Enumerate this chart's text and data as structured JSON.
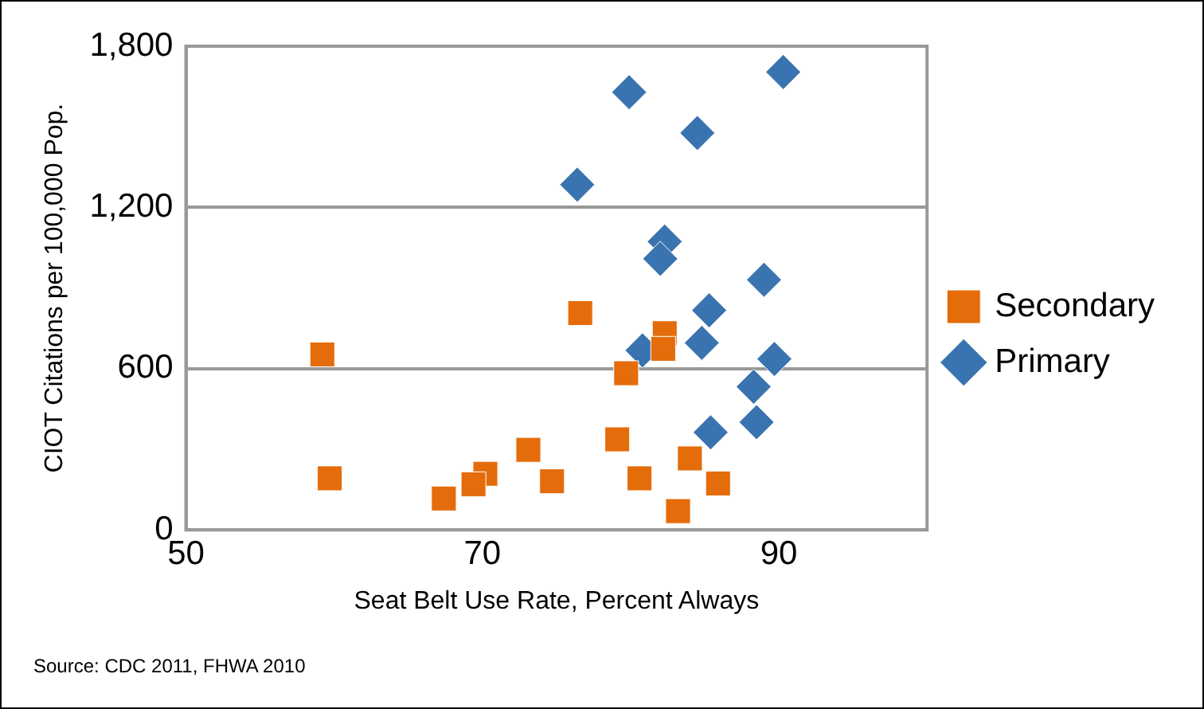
{
  "chart_data": {
    "type": "scatter",
    "xlabel": "Seat Belt Use Rate, Percent Always",
    "ylabel": "CIOT Citations per 100,000 Pop.",
    "xlim": [
      50,
      100
    ],
    "xticks": [
      50,
      70,
      90
    ],
    "ylim": [
      0,
      1800
    ],
    "yticks": [
      0,
      600,
      {
        "value": 1200,
        "label": "1,200"
      },
      {
        "value": 1800,
        "label": "1,800"
      }
    ],
    "grid": "y",
    "legend": "right",
    "annotations": [
      "Source: CDC 2011, FHWA 2010"
    ],
    "series": [
      {
        "name": "Secondary",
        "color": "#e46c0a",
        "marker": "square",
        "x": [
          59.2,
          76.6,
          82.3,
          82.2,
          79.7,
          59.7,
          73.1,
          70.2,
          69.4,
          67.4,
          74.7,
          79.1,
          80.6,
          84.0,
          85.9,
          83.2
        ],
        "values": [
          653,
          807,
          732,
          674,
          583,
          192,
          298,
          209,
          170,
          117,
          181,
          337,
          192,
          266,
          173,
          70
        ]
      },
      {
        "name": "Primary",
        "color": "#3a74b0",
        "marker": "diamond",
        "x": [
          79.9,
          90.3,
          84.5,
          76.4,
          82.3,
          82.0,
          89.0,
          85.3,
          80.8,
          84.8,
          89.7,
          88.3,
          88.5,
          85.4
        ],
        "values": [
          1629,
          1704,
          1477,
          1285,
          1073,
          1009,
          931,
          817,
          668,
          696,
          636,
          533,
          401,
          363
        ]
      }
    ]
  }
}
